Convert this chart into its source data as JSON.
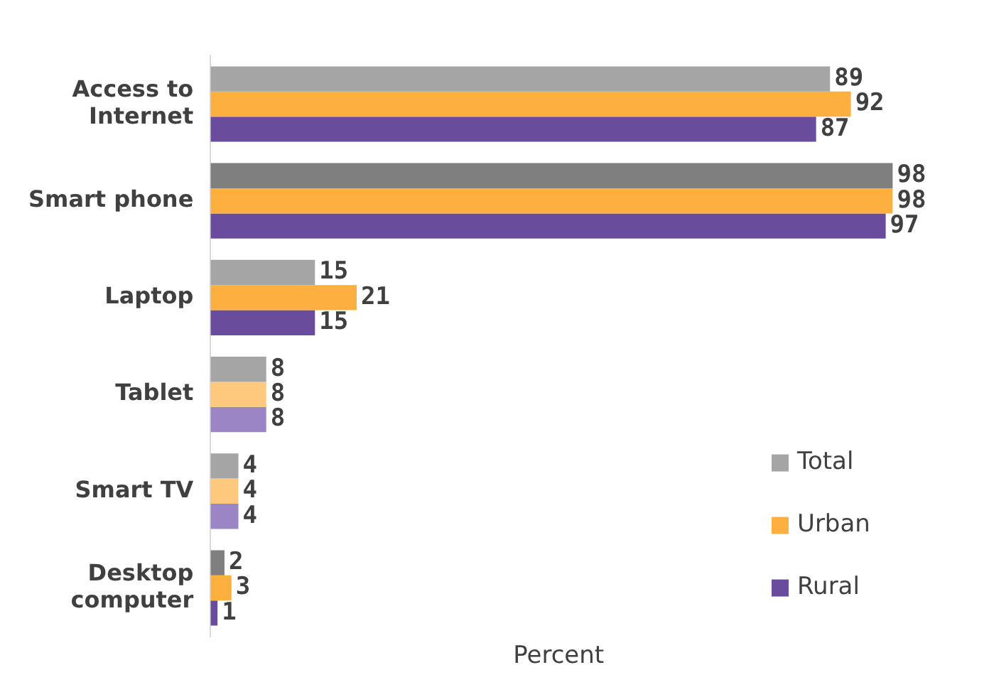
{
  "chart_data": {
    "type": "bar",
    "orientation": "horizontal",
    "xlabel": "Percent",
    "categories": [
      "Access to Internet",
      "Smart phone",
      "Laptop",
      "Tablet",
      "Smart TV",
      "Desktop computer"
    ],
    "series": [
      {
        "name": "Total",
        "color": "#a5a5a5",
        "colors": [
          "#a5a5a5",
          "#7f7f7f",
          "#a5a5a5",
          "#a5a5a5",
          "#a5a5a5",
          "#7f7f7f"
        ],
        "values": [
          89,
          98,
          15,
          8,
          4,
          2
        ]
      },
      {
        "name": "Urban",
        "color": "#fdb03f",
        "colors": [
          "#fdb03f",
          "#fdb03f",
          "#fdb03f",
          "#fec97c",
          "#fec97c",
          "#fdb03f"
        ],
        "values": [
          92,
          98,
          21,
          8,
          4,
          3
        ]
      },
      {
        "name": "Rural",
        "color": "#6a4c9c",
        "colors": [
          "#6a4c9c",
          "#6a4c9c",
          "#6a4c9c",
          "#9b85c4",
          "#9b85c4",
          "#6a4c9c"
        ],
        "values": [
          87,
          97,
          15,
          8,
          4,
          1
        ]
      }
    ],
    "tick_labels": "y",
    "data_labels": true,
    "grid": false,
    "legend": "bottom right"
  }
}
